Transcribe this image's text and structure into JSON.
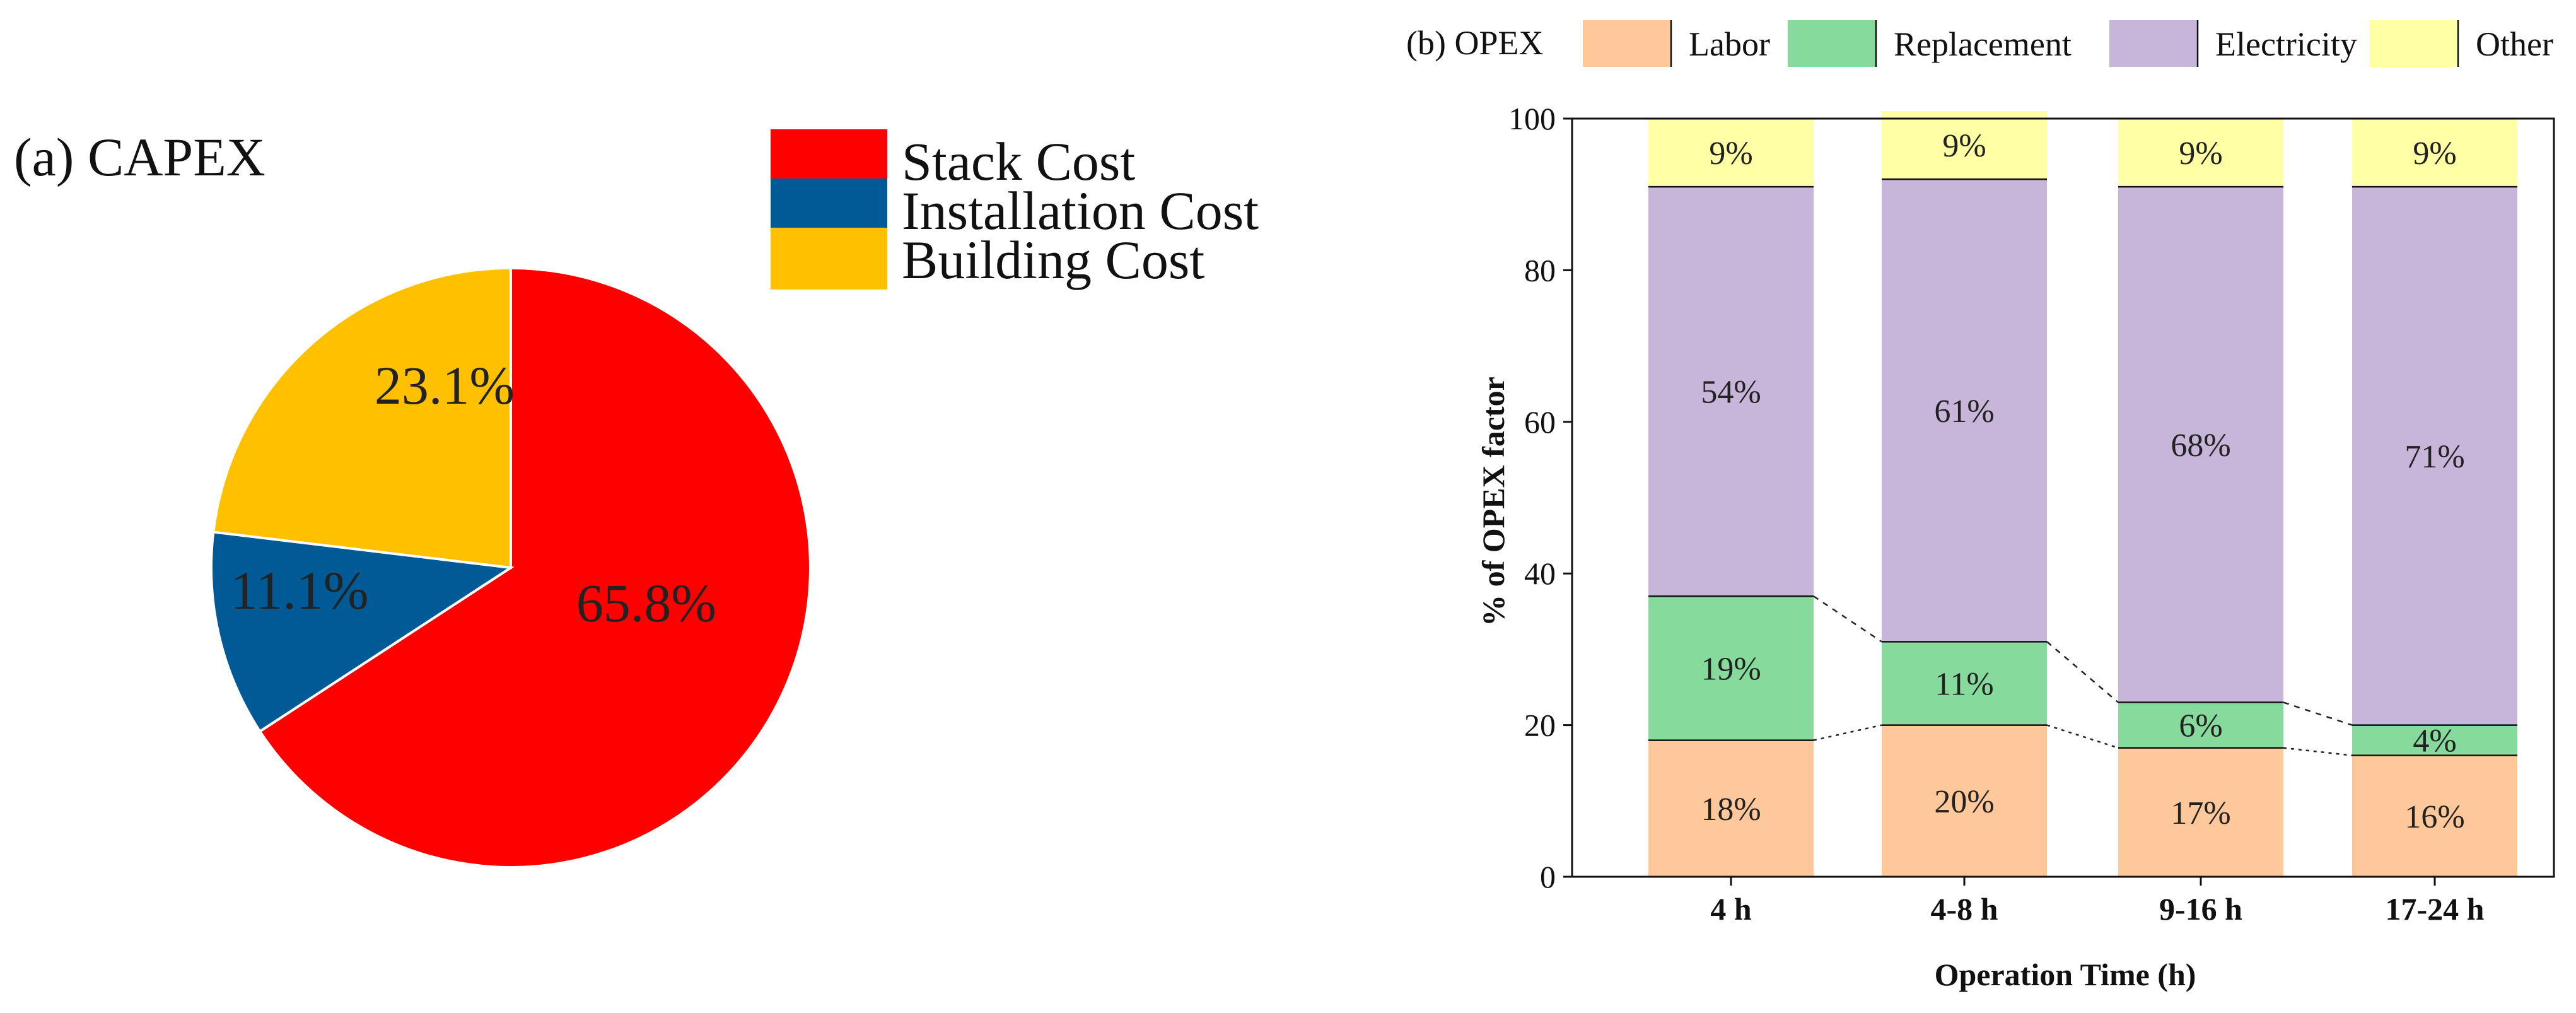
{
  "chart_data": [
    {
      "type": "pie",
      "title": "(a) CAPEX",
      "slices": [
        {
          "label": "Stack Cost",
          "value": 65.8,
          "value_label": "65.8%",
          "color": "#FF0000"
        },
        {
          "label": "Installation Cost",
          "value": 11.1,
          "value_label": "11.1%",
          "color": "#005A96"
        },
        {
          "label": "Building Cost",
          "value": 23.1,
          "value_label": "23.1%",
          "color": "#FFC000"
        }
      ],
      "legend_placement": "top-right"
    },
    {
      "type": "bar",
      "stacked": true,
      "title": "(b) OPEX",
      "xlabel": "Operation Time (h)",
      "ylabel": "% of OPEX factor",
      "ylim": [
        0,
        100
      ],
      "yticks": [
        0,
        20,
        40,
        60,
        80,
        100
      ],
      "categories": [
        "4 h",
        "4-8 h",
        "9-16 h",
        "17-24 h"
      ],
      "series": [
        {
          "name": "Labor",
          "color": "#FFC89B",
          "values": [
            18,
            20,
            17,
            16
          ],
          "labels": [
            "18%",
            "20%",
            "17%",
            "16%"
          ]
        },
        {
          "name": "Replacement",
          "color": "#86DA9C",
          "values": [
            19,
            11,
            6,
            4
          ],
          "labels": [
            "19%",
            "11%",
            "6%",
            "4%"
          ]
        },
        {
          "name": "Electricity",
          "color": "#C7B6D9",
          "values": [
            54,
            61,
            68,
            71
          ],
          "labels": [
            "54%",
            "61%",
            "68%",
            "71%"
          ]
        },
        {
          "name": "Other",
          "color": "#FFFFA6",
          "values": [
            9,
            9,
            9,
            9
          ],
          "labels": [
            "9%",
            "9%",
            "9%",
            "9%"
          ]
        }
      ],
      "legend_placement": "top",
      "grid": false
    }
  ]
}
